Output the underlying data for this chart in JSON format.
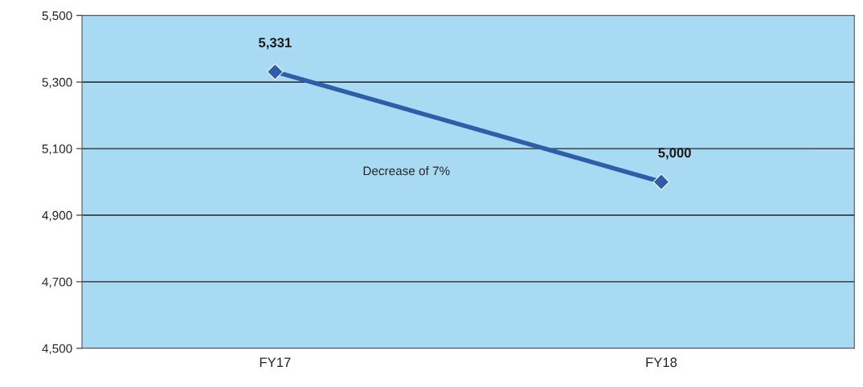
{
  "chart_data": {
    "type": "line",
    "categories": [
      "FY17",
      "FY18"
    ],
    "series": [
      {
        "color": "#2f5ea8",
        "values": [
          5331,
          5000
        ],
        "value_labels": [
          "5,331",
          "5,000"
        ]
      }
    ],
    "ylim": [
      4500,
      5500
    ],
    "yticks": [
      {
        "value": 4500,
        "label": "4,500"
      },
      {
        "value": 4700,
        "label": "4,700"
      },
      {
        "value": 4900,
        "label": "4,900"
      },
      {
        "value": 5100,
        "label": "5,100"
      },
      {
        "value": 5300,
        "label": "5,300"
      },
      {
        "value": 5500,
        "label": "5,500"
      }
    ],
    "grid": "y",
    "marker": "diamond",
    "line_style": "solid",
    "annotations": [
      "Decrease of 7%"
    ]
  }
}
